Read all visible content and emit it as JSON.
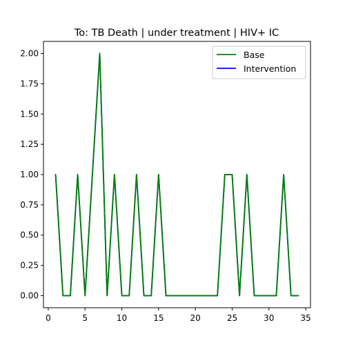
{
  "chart_data": {
    "type": "line",
    "title": "To: TB Death | under treatment | HIV+ IC",
    "xlabel": "",
    "ylabel": "",
    "xlim": [
      -0.65,
      35.65
    ],
    "ylim": [
      -0.1,
      2.1
    ],
    "x_ticks": [
      0,
      5,
      10,
      15,
      20,
      25,
      30,
      35
    ],
    "x_tick_labels": [
      "0",
      "5",
      "10",
      "15",
      "20",
      "25",
      "30",
      "35"
    ],
    "y_ticks": [
      0,
      0.25,
      0.5,
      0.75,
      1.0,
      1.25,
      1.5,
      1.75,
      2.0
    ],
    "y_tick_labels": [
      "0.00",
      "0.25",
      "0.50",
      "0.75",
      "1.00",
      "1.25",
      "1.50",
      "1.75",
      "2.00"
    ],
    "grid": false,
    "legend_position": "top-right",
    "x": [
      1,
      2,
      3,
      4,
      5,
      6,
      7,
      8,
      9,
      10,
      11,
      12,
      13,
      14,
      15,
      16,
      17,
      18,
      19,
      20,
      21,
      22,
      23,
      24,
      25,
      26,
      27,
      28,
      29,
      30,
      31,
      32,
      33,
      34
    ],
    "series": [
      {
        "name": "Base",
        "color": "#008000",
        "values": [
          1,
          0,
          0,
          1,
          0,
          1,
          2,
          0,
          1,
          0,
          0,
          1,
          0,
          0,
          1,
          0,
          0,
          0,
          0,
          0,
          0,
          0,
          0,
          1,
          1,
          0,
          1,
          0,
          0,
          0,
          0,
          1,
          0,
          0
        ]
      },
      {
        "name": "Intervention",
        "color": "#0000ff",
        "values": [
          1,
          0,
          0,
          1,
          0,
          1,
          2,
          0,
          1,
          0,
          0,
          1,
          0,
          0,
          1,
          0,
          0,
          0,
          0,
          0,
          0,
          0,
          0,
          1,
          1,
          0,
          1,
          0,
          0,
          0,
          0,
          1,
          0,
          0
        ]
      }
    ]
  }
}
